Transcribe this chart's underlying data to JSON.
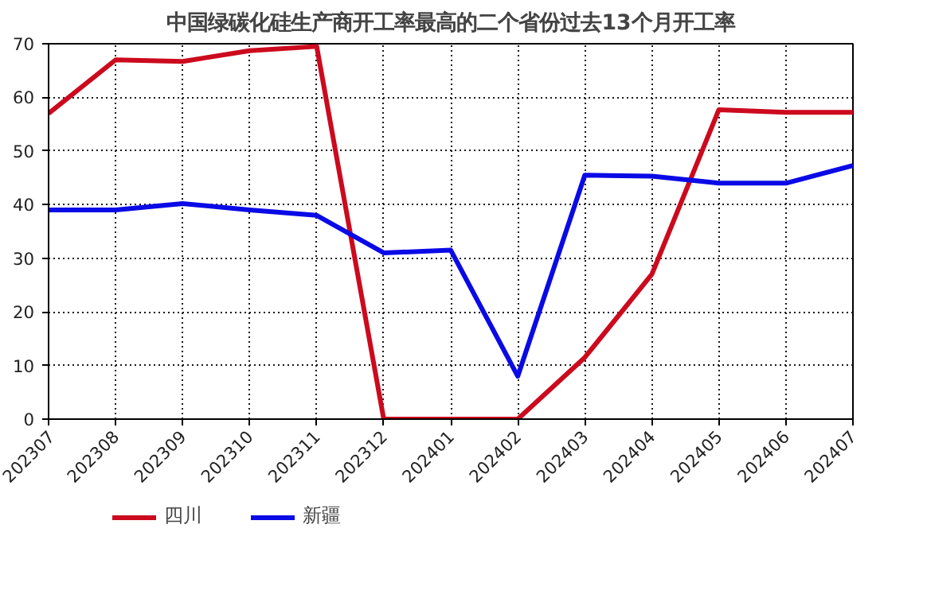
{
  "chart_data": {
    "type": "line",
    "title": "中国绿碳化硅生产商开工率最高的二个省份过去13个月开工率",
    "categories": [
      "202307",
      "202308",
      "202309",
      "202310",
      "202311",
      "202312",
      "202401",
      "202402",
      "202403",
      "202404",
      "202405",
      "202406",
      "202407"
    ],
    "series": [
      {
        "name": "四川",
        "color": "#cc0a1e",
        "values": [
          57,
          67,
          66.7,
          68.7,
          69.5,
          0,
          0,
          0,
          11.5,
          27,
          57.7,
          57.2,
          57.2
        ]
      },
      {
        "name": "新疆",
        "color": "#0a0ae6",
        "values": [
          39,
          39,
          40.2,
          39,
          38,
          31,
          31.5,
          8,
          45.5,
          45.3,
          44,
          44,
          47.3
        ]
      }
    ],
    "ylim": [
      0,
      70
    ],
    "yticks": [
      0,
      10,
      20,
      30,
      40,
      50,
      60,
      70
    ],
    "grid": true,
    "legend": "bottom left",
    "marker": "none",
    "line_style": "solid"
  }
}
